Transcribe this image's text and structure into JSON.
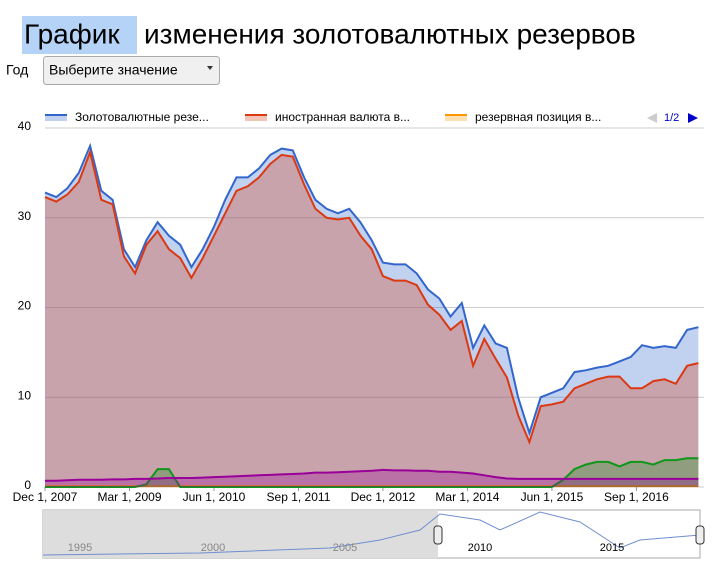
{
  "header": {
    "title_selected": "График",
    "title": "изменения золотовалютных резервов"
  },
  "controls": {
    "label": "Год",
    "select": "Выберите значение"
  },
  "legend_pager": "1/2",
  "navigator": {
    "labels": [
      "1995",
      "2000",
      "2005",
      "2010",
      "2015"
    ]
  },
  "chart_data": {
    "type": "area",
    "x": [
      "2007-12-01",
      "2008-02-01",
      "2008-04-01",
      "2008-06-01",
      "2008-08-01",
      "2008-10-01",
      "2008-12-01",
      "2009-02-01",
      "2009-04-01",
      "2009-06-01",
      "2009-08-01",
      "2009-10-01",
      "2009-12-01",
      "2010-02-01",
      "2010-04-01",
      "2010-06-01",
      "2010-08-01",
      "2010-10-01",
      "2010-12-01",
      "2011-02-01",
      "2011-04-01",
      "2011-06-01",
      "2011-08-01",
      "2011-10-01",
      "2011-12-01",
      "2012-02-01",
      "2012-04-01",
      "2012-06-01",
      "2012-08-01",
      "2012-10-01",
      "2012-12-01",
      "2013-02-01",
      "2013-04-01",
      "2013-06-01",
      "2013-08-01",
      "2013-10-01",
      "2013-12-01",
      "2014-02-01",
      "2014-04-01",
      "2014-06-01",
      "2014-08-01",
      "2014-10-01",
      "2014-12-01",
      "2015-02-01",
      "2015-04-01",
      "2015-06-01",
      "2015-08-01",
      "2015-10-01",
      "2015-12-01",
      "2016-02-01",
      "2016-04-01",
      "2016-06-01",
      "2016-08-01",
      "2016-10-01",
      "2016-12-01",
      "2017-02-01",
      "2017-04-01",
      "2017-06-01",
      "2017-08-01"
    ],
    "series": [
      {
        "name": "Золотовалютные резе...",
        "color": "#3366cc",
        "values": [
          32.8,
          32.3,
          33.3,
          35,
          38,
          33,
          32,
          26.5,
          24.5,
          27.5,
          29.5,
          28,
          27,
          24.5,
          26.5,
          29,
          32,
          34.5,
          34.5,
          35.5,
          37,
          37.7,
          37.5,
          34.5,
          32,
          31,
          30.5,
          31,
          29.5,
          27.5,
          25,
          24.8,
          24.8,
          23.8,
          22,
          21,
          19,
          20.5,
          15.5,
          18,
          16,
          15.5,
          10,
          6,
          10,
          10.5,
          11,
          12.8,
          13,
          13.3,
          13.5,
          14,
          14.5,
          15.8,
          15.5,
          15.7,
          15.5,
          17.5,
          17.8
        ]
      },
      {
        "name": "иностранная валюта в...",
        "color": "#dc3912",
        "values": [
          32.3,
          31.8,
          32.6,
          34,
          37.3,
          32,
          31.5,
          25.7,
          23.8,
          27,
          28.5,
          26.5,
          25.5,
          23.3,
          25.5,
          28,
          30.5,
          33,
          33.5,
          34.5,
          36,
          37,
          36.8,
          33.7,
          31,
          30,
          29.8,
          30,
          28,
          26.5,
          23.5,
          23,
          23,
          22.5,
          20.3,
          19.2,
          17.5,
          18.5,
          13.5,
          16.5,
          14.3,
          12.2,
          8,
          5,
          9,
          9.2,
          9.5,
          11,
          11.5,
          12,
          12.3,
          12.3,
          11,
          11,
          11.8,
          12,
          11.5,
          13.5,
          13.8
        ]
      },
      {
        "name": "резервная позиция в...",
        "color": "#ff9900",
        "values": [
          0.1,
          0.1,
          0.1,
          0.1,
          0.1,
          0.1,
          0.1,
          0.1,
          0.1,
          0.1,
          0.1,
          0.1,
          0.1,
          0.1,
          0.1,
          0.1,
          0.1,
          0.1,
          0.1,
          0.1,
          0.1,
          0.1,
          0.1,
          0.1,
          0.1,
          0.1,
          0.1,
          0.1,
          0.1,
          0.1,
          0.1,
          0.1,
          0.1,
          0.1,
          0.1,
          0.1,
          0.1,
          0.1,
          0.1,
          0.1,
          0.1,
          0.1,
          0.1,
          0.1,
          0.1,
          0.1,
          0.1,
          0.1,
          0.1,
          0.1,
          0.1,
          0.1,
          0.1,
          0.1,
          0.1,
          0.1,
          0.1,
          0.1,
          0.1
        ]
      },
      {
        "color": "#109618",
        "values": [
          0,
          0,
          0,
          0,
          0,
          0,
          0,
          0,
          0,
          0.3,
          2,
          2,
          0,
          0,
          0,
          0,
          0,
          0,
          0,
          0,
          0,
          0,
          0,
          0,
          0,
          0,
          0,
          0,
          0,
          0,
          0,
          0,
          0,
          0,
          0,
          0,
          0,
          0,
          0,
          0,
          0,
          0,
          0,
          0,
          0,
          0,
          0.8,
          2,
          2.5,
          2.8,
          2.8,
          2.3,
          2.8,
          2.8,
          2.5,
          3,
          3,
          3.2,
          3.2
        ]
      },
      {
        "color": "#990099",
        "values": [
          0.7,
          0.7,
          0.75,
          0.8,
          0.8,
          0.8,
          0.85,
          0.85,
          0.9,
          0.9,
          0.95,
          1,
          1,
          1,
          1.05,
          1.1,
          1.15,
          1.2,
          1.25,
          1.3,
          1.35,
          1.4,
          1.45,
          1.5,
          1.6,
          1.6,
          1.65,
          1.7,
          1.75,
          1.8,
          1.9,
          1.85,
          1.85,
          1.8,
          1.8,
          1.7,
          1.7,
          1.6,
          1.5,
          1.3,
          1.1,
          0.95,
          0.9,
          0.9,
          0.9,
          0.9,
          0.9,
          0.9,
          0.9,
          0.9,
          0.9,
          0.9,
          0.9,
          0.9,
          0.9,
          0.9,
          0.9,
          0.9,
          0.9
        ]
      }
    ],
    "xlim": [
      "2007-12-01",
      "2017-09-01"
    ],
    "xticks": [
      {
        "value": "2007-12-01",
        "label": "Dec 1, 2007"
      },
      {
        "value": "2009-03-01",
        "label": "Mar 1, 2009"
      },
      {
        "value": "2010-06-01",
        "label": "Jun 1, 2010"
      },
      {
        "value": "2011-09-01",
        "label": "Sep 1, 2011"
      },
      {
        "value": "2012-12-01",
        "label": "Dec 1, 2012"
      },
      {
        "value": "2014-03-01",
        "label": "Mar 1, 2014"
      },
      {
        "value": "2015-06-01",
        "label": "Jun 1, 2015"
      },
      {
        "value": "2016-09-01",
        "label": "Sep 1, 2016"
      }
    ],
    "ylim": [
      0,
      40
    ],
    "yticks": [
      0,
      10,
      20,
      30,
      40
    ],
    "grid": true
  }
}
